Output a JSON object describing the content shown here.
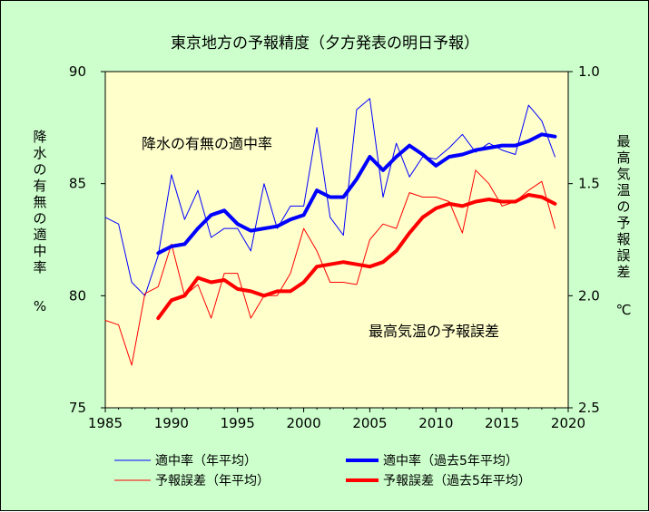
{
  "chart_data": {
    "type": "line",
    "title": "東京地方の予報精度（夕方発表の明日予報）",
    "y_left_label_chars": [
      "降",
      "水",
      "の",
      "有",
      "無",
      "の",
      "適",
      "中",
      "率"
    ],
    "y_left_unit": "%",
    "y_right_label_chars": [
      "最",
      "高",
      "気",
      "温",
      "の",
      "予",
      "報",
      "誤",
      "差"
    ],
    "y_right_unit": "℃",
    "annotation_top": "降水の有無の適中率",
    "annotation_bottom": "最高気温の予報誤差",
    "xlim": [
      1985,
      2020
    ],
    "x_ticks": [
      "1985",
      "1990",
      "1995",
      "2000",
      "2005",
      "2010",
      "2015",
      "2020"
    ],
    "y_left_lim": [
      75,
      90
    ],
    "y_left_ticks": [
      "75",
      "80",
      "85",
      "90"
    ],
    "y_right_lim": [
      1.0,
      2.5
    ],
    "y_right_reversed": true,
    "y_right_ticks": [
      "1.0",
      "1.5",
      "2.0",
      "2.5"
    ],
    "colors": {
      "background": "#ccffcc",
      "plot_area": "#ffffcc",
      "accuracy": "#0000ff",
      "error": "#ff0000"
    },
    "legend": {
      "accuracy_annual": "適中率（年平均）",
      "accuracy_5yr": "適中率（過去5年平均）",
      "error_annual": "予報誤差（年平均）",
      "error_5yr": "予報誤差（過去5年平均）"
    },
    "series": [
      {
        "key": "accuracy_annual",
        "axis": "left",
        "color": "#0000ff",
        "width": 1,
        "x": [
          1985,
          1986,
          1987,
          1988,
          1989,
          1990,
          1991,
          1992,
          1993,
          1994,
          1995,
          1996,
          1997,
          1998,
          1999,
          2000,
          2001,
          2002,
          2003,
          2004,
          2005,
          2006,
          2007,
          2008,
          2009,
          2010,
          2011,
          2012,
          2013,
          2014,
          2015,
          2016,
          2017,
          2018,
          2019
        ],
        "values": [
          83.5,
          83.2,
          80.6,
          80.0,
          81.8,
          85.4,
          83.4,
          84.7,
          82.6,
          83.0,
          83.0,
          82.0,
          85.0,
          83.0,
          84.0,
          84.0,
          87.5,
          83.5,
          82.7,
          88.3,
          88.8,
          84.4,
          86.8,
          85.3,
          86.2,
          86.1,
          86.6,
          87.2,
          86.4,
          86.8,
          86.5,
          86.3,
          88.5,
          87.8,
          86.2
        ]
      },
      {
        "key": "accuracy_5yr",
        "axis": "left",
        "color": "#0000ff",
        "width": 4,
        "x": [
          1989,
          1990,
          1991,
          1992,
          1993,
          1994,
          1995,
          1996,
          1997,
          1998,
          1999,
          2000,
          2001,
          2002,
          2003,
          2004,
          2005,
          2006,
          2007,
          2008,
          2009,
          2010,
          2011,
          2012,
          2013,
          2014,
          2015,
          2016,
          2017,
          2018,
          2019
        ],
        "values": [
          81.9,
          82.2,
          82.3,
          83.0,
          83.6,
          83.8,
          83.2,
          82.9,
          83.0,
          83.1,
          83.4,
          83.6,
          84.7,
          84.4,
          84.4,
          85.2,
          86.2,
          85.6,
          86.2,
          86.7,
          86.3,
          85.8,
          86.2,
          86.3,
          86.5,
          86.6,
          86.7,
          86.7,
          86.9,
          87.2,
          87.1
        ]
      },
      {
        "key": "error_annual",
        "axis": "right",
        "color": "#ff0000",
        "width": 1,
        "x": [
          1985,
          1986,
          1987,
          1988,
          1989,
          1990,
          1991,
          1992,
          1993,
          1994,
          1995,
          1996,
          1997,
          1998,
          1999,
          2000,
          2001,
          2002,
          2003,
          2004,
          2005,
          2006,
          2007,
          2008,
          2009,
          2010,
          2011,
          2012,
          2013,
          2014,
          2015,
          2016,
          2017,
          2018,
          2019
        ],
        "values": [
          2.11,
          2.13,
          2.31,
          1.99,
          1.96,
          1.77,
          2.0,
          1.95,
          2.1,
          1.9,
          1.9,
          2.1,
          2.0,
          2.0,
          1.9,
          1.7,
          1.8,
          1.94,
          1.94,
          1.95,
          1.75,
          1.68,
          1.7,
          1.54,
          1.56,
          1.56,
          1.58,
          1.72,
          1.44,
          1.5,
          1.6,
          1.58,
          1.53,
          1.49,
          1.7
        ]
      },
      {
        "key": "error_5yr",
        "axis": "right",
        "color": "#ff0000",
        "width": 4,
        "x": [
          1989,
          1990,
          1991,
          1992,
          1993,
          1994,
          1995,
          1996,
          1997,
          1998,
          1999,
          2000,
          2001,
          2002,
          2003,
          2004,
          2005,
          2006,
          2007,
          2008,
          2009,
          2010,
          2011,
          2012,
          2013,
          2014,
          2015,
          2016,
          2017,
          2018,
          2019
        ],
        "values": [
          2.1,
          2.02,
          2.0,
          1.92,
          1.94,
          1.93,
          1.97,
          1.98,
          2.0,
          1.98,
          1.98,
          1.94,
          1.87,
          1.86,
          1.85,
          1.86,
          1.87,
          1.85,
          1.8,
          1.72,
          1.65,
          1.61,
          1.59,
          1.6,
          1.58,
          1.57,
          1.58,
          1.58,
          1.55,
          1.56,
          1.59
        ]
      }
    ]
  }
}
